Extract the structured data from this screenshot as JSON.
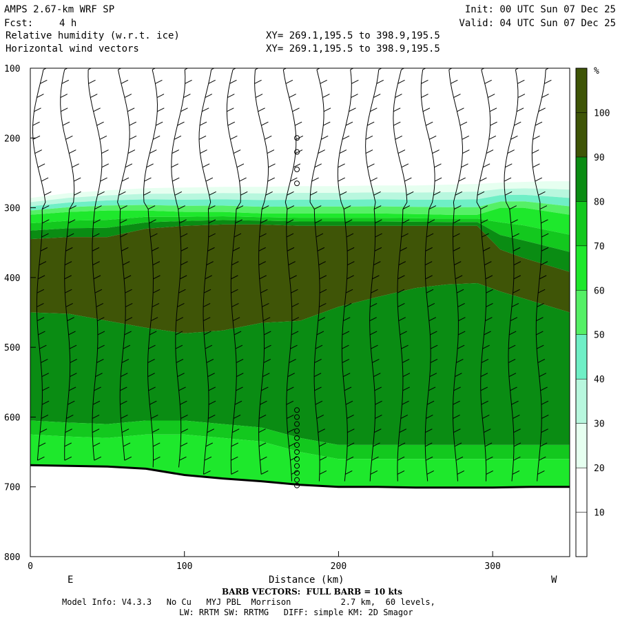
{
  "header": {
    "model": "AMPS 2.67-km WRF SP",
    "init": "Init: 00 UTC Sun 07 Dec 25",
    "fcst_label": "Fcst:",
    "fcst_value": "4 h",
    "valid": "Valid: 04 UTC Sun 07 Dec 25",
    "field1": "Relative humidity (w.r.t. ice)",
    "field2": "Horizontal wind vectors",
    "xy1": "XY= 269.1,195.5 to 398.9,195.5",
    "xy2": "XY= 269.1,195.5 to 398.9,195.5"
  },
  "footer": {
    "barb_note": "BARB VECTORS:  FULL BARB = 10 kts",
    "model_info": "Model Info: V4.3.3   No Cu   MYJ PBL  Morrison          2.7 km,  60 levels,",
    "model_info2": "LW: RRTM SW: RRTMG   DIFF: simple KM: 2D Smagor"
  },
  "chart_data": {
    "type": "heatmap",
    "title": "Relative humidity (w.r.t. ice)",
    "overlay": "Horizontal wind vectors (barbs)",
    "xlabel": "Distance (km)",
    "x_left_label": "E",
    "x_right_label": "W",
    "xlim": [
      0,
      350
    ],
    "ylim": [
      100,
      800
    ],
    "y_inverted": true,
    "x_ticks": [
      0,
      100,
      200,
      300
    ],
    "y_ticks": [
      100,
      200,
      300,
      400,
      500,
      600,
      700,
      800
    ],
    "colorbar": {
      "unit": "%",
      "levels": [
        10,
        20,
        30,
        40,
        50,
        60,
        70,
        80,
        90,
        100
      ],
      "colors": [
        "#ffffff",
        "#ffffff",
        "#e6fff0",
        "#b8f7de",
        "#6fefc6",
        "#55f066",
        "#1ee82c",
        "#13c81e",
        "#0a8c13",
        "#3f5507"
      ]
    },
    "terrain": {
      "x": [
        0,
        25,
        50,
        75,
        100,
        125,
        150,
        175,
        200,
        225,
        250,
        275,
        300,
        325,
        350
      ],
      "p": [
        669,
        670,
        671,
        674,
        683,
        688,
        692,
        697,
        700,
        700,
        701,
        701,
        701,
        700,
        700
      ]
    },
    "rh_bands": {
      "x": [
        0,
        25,
        50,
        75,
        100,
        125,
        150,
        175,
        200,
        225,
        250,
        270,
        290,
        305,
        320,
        335,
        350
      ],
      "p_rh30_top": [
        286,
        279,
        275,
        272,
        271,
        270,
        270,
        269,
        269,
        268,
        268,
        267,
        266,
        264,
        263,
        262,
        262
      ],
      "p_rh80_top": [
        310,
        306,
        304,
        304,
        306,
        306,
        308,
        308,
        308,
        308,
        309,
        310,
        310,
        300,
        300,
        305,
        310
      ],
      "p_rh100_top": [
        345,
        342,
        342,
        330,
        326,
        324,
        324,
        326,
        326,
        326,
        326,
        326,
        326,
        360,
        372,
        382,
        392
      ],
      "p_rh100_bottom": [
        450,
        452,
        462,
        472,
        480,
        476,
        465,
        462,
        442,
        428,
        415,
        410,
        408,
        420,
        430,
        440,
        450
      ],
      "p_rh90_bottom": [
        605,
        608,
        610,
        605,
        605,
        610,
        615,
        630,
        640,
        640,
        640,
        640,
        640,
        640,
        640,
        640,
        640
      ],
      "p_rh80_bottom": [
        625,
        628,
        630,
        625,
        625,
        630,
        635,
        650,
        660,
        660,
        660,
        660,
        660,
        660,
        660,
        660,
        660
      ]
    },
    "barbs": {
      "columns_x_km": [
        6,
        24,
        42,
        60,
        78,
        96,
        114,
        132,
        150,
        168,
        186,
        204,
        222,
        240,
        258,
        276,
        294,
        312,
        330
      ],
      "calm_column_x_km": 173,
      "calm_levels_hpa": [
        200,
        220,
        245,
        265,
        590,
        600,
        610,
        620,
        630,
        640,
        650,
        660,
        670,
        680,
        690,
        698
      ]
    }
  }
}
